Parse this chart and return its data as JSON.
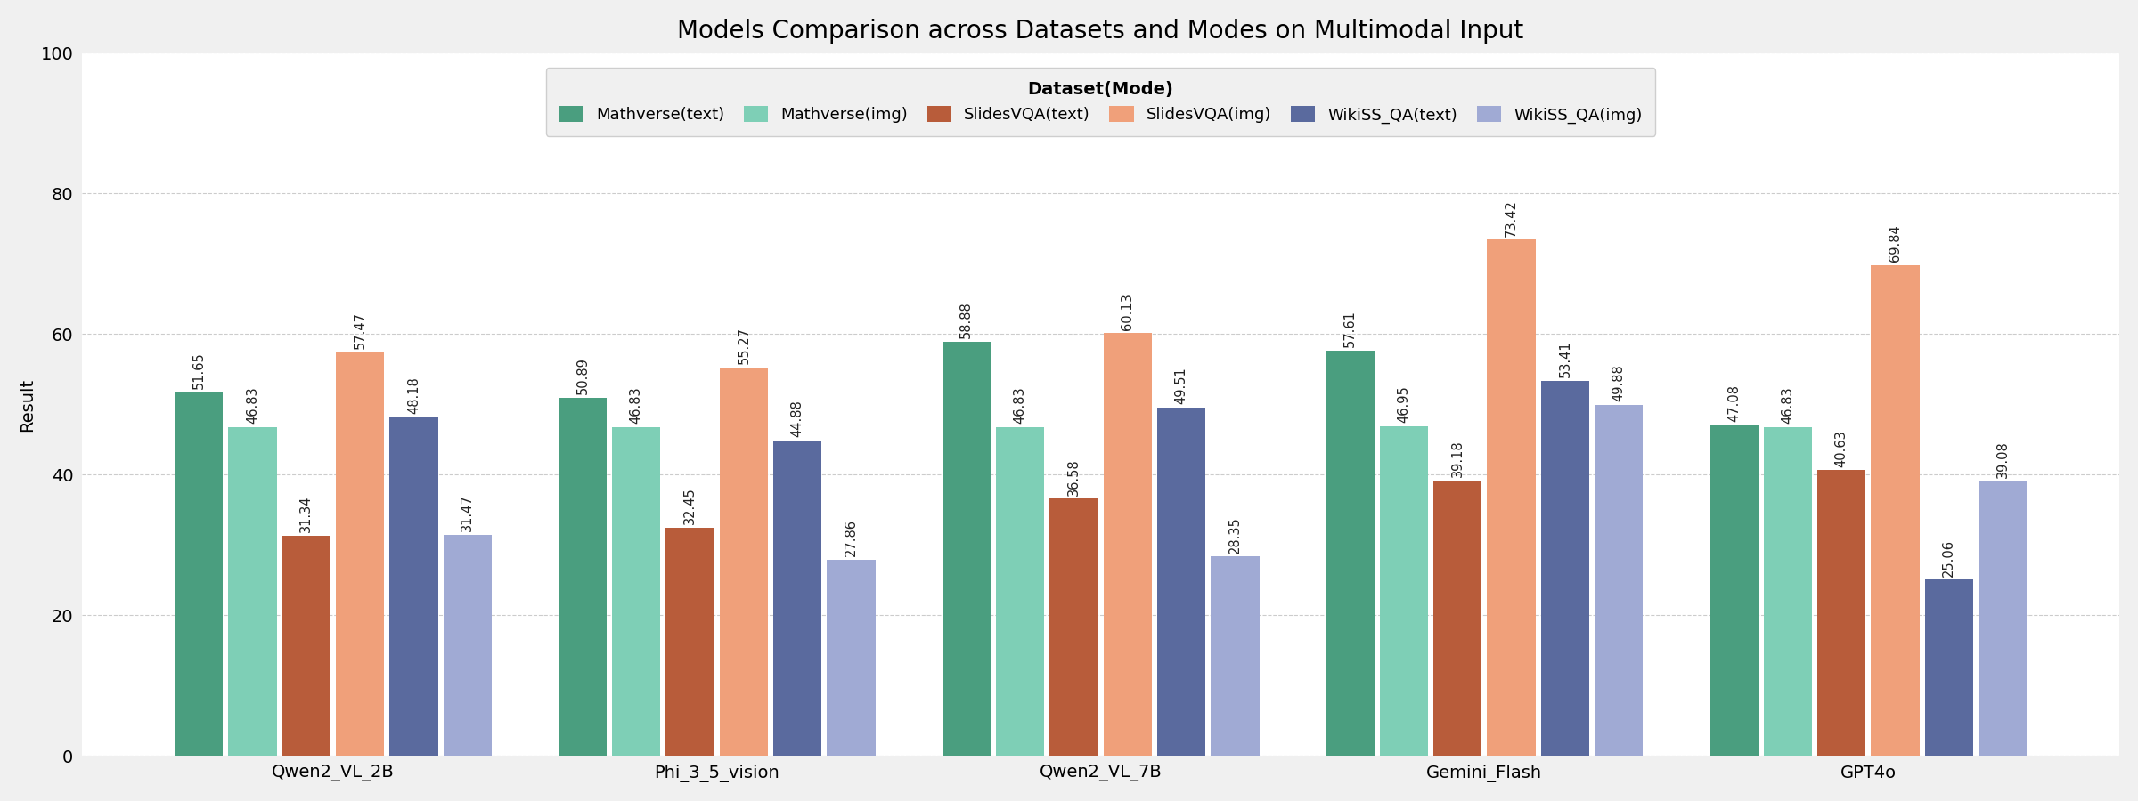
{
  "title": "Models Comparison across Datasets and Modes on Multimodal Input",
  "ylabel": "Result",
  "legend_title": "Dataset(Mode)",
  "ylim": [
    0,
    100
  ],
  "yticks": [
    0,
    20,
    40,
    60,
    80,
    100
  ],
  "models": [
    "Qwen2_VL_2B",
    "Phi_3_5_vision",
    "Qwen2_VL_7B",
    "Gemini_Flash",
    "GPT4o"
  ],
  "series_labels": [
    "Mathverse(text)",
    "Mathverse(img)",
    "SlidesVQA(text)",
    "SlidesVQA(img)",
    "WikiSS_QA(text)",
    "WikiSS_QA(img)"
  ],
  "series_colors": [
    "#4a9e7f",
    "#7ecfb6",
    "#b85c3a",
    "#f0a07a",
    "#5a6a9e",
    "#a0aad4"
  ],
  "data": {
    "Mathverse(text)": [
      51.65,
      50.89,
      58.88,
      57.61,
      47.08
    ],
    "Mathverse(img)": [
      46.83,
      46.83,
      46.83,
      46.95,
      46.83
    ],
    "SlidesVQA(text)": [
      31.34,
      32.45,
      36.58,
      39.18,
      40.63
    ],
    "SlidesVQA(img)": [
      57.47,
      55.27,
      60.13,
      73.42,
      69.84
    ],
    "WikiSS_QA(text)": [
      48.18,
      44.88,
      49.51,
      53.41,
      25.06
    ],
    "WikiSS_QA(img)": [
      31.47,
      27.86,
      28.35,
      49.88,
      39.08
    ]
  },
  "background_color": "#f0f0f0",
  "plot_background": "#ffffff",
  "grid_color": "#cccccc",
  "bar_width": 0.14,
  "title_fontsize": 20,
  "label_fontsize": 14,
  "tick_fontsize": 14,
  "legend_fontsize": 13,
  "value_fontsize": 10.5
}
